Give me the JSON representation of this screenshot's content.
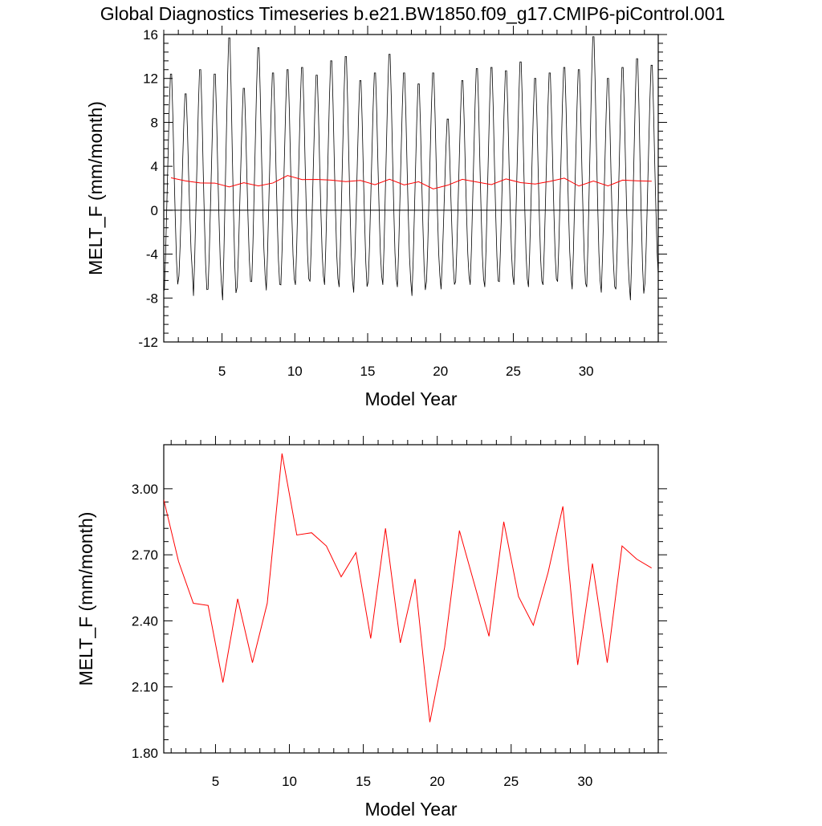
{
  "title": "Global Diagnostics Timeseries b.e21.BW1850.f09_g17.CMIP6-piControl.001",
  "colors": {
    "monthly_line": "#000000",
    "annual_line": "#ff0000",
    "axes": "#000000"
  },
  "chart_data": [
    {
      "type": "line",
      "panel": "top",
      "xlabel": "Model Year",
      "ylabel": "MELT_F (mm/month)",
      "xlim": [
        1,
        34.95
      ],
      "ylim": [
        -12,
        16
      ],
      "x_ticks": [
        5,
        10,
        15,
        20,
        25,
        30
      ],
      "x_tick_labels": [
        "5",
        "10",
        "15",
        "20",
        "25",
        "30"
      ],
      "y_ticks": [
        -12,
        -8,
        -4,
        0,
        4,
        8,
        12,
        16
      ],
      "y_tick_labels": [
        "-12",
        "-8",
        "-4",
        "0",
        "4",
        "8",
        "12",
        "16"
      ],
      "reference_line_y": 0,
      "grid": false,
      "series": [
        {
          "style": "monthly",
          "color": "#000000",
          "x_start": 1.0417,
          "x_step": 0.08333,
          "seasonal_cycle_template": [
            -6.5,
            -3.5,
            0.5,
            4.5,
            8.5,
            11.5,
            11.5,
            8.0,
            3.5,
            -0.5,
            -4.0,
            -6.0
          ],
          "annual_peak_y": [
            12.4,
            10.6,
            12.8,
            12.4,
            15.7,
            11.1,
            14.8,
            12.5,
            12.8,
            13.0,
            12.3,
            13.6,
            14.0,
            11.8,
            12.5,
            14.2,
            12.5,
            11.5,
            12.5,
            8.3,
            11.8,
            12.9,
            13.0,
            12.7,
            13.5,
            12.0,
            12.5,
            13.0,
            12.8,
            15.8,
            12.0,
            13.0,
            13.8,
            13.2
          ],
          "annual_trough_y": [
            -7.3,
            -6.0,
            -7.8,
            -7.2,
            -8.2,
            -7.0,
            -6.5,
            -7.3,
            -6.8,
            -6.8,
            -6.5,
            -6.8,
            -7.0,
            -7.5,
            -6.5,
            -6.8,
            -7.0,
            -7.8,
            -6.5,
            -7.2,
            -6.5,
            -6.8,
            -7.0,
            -6.5,
            -6.8,
            -7.0,
            -6.8,
            -6.5,
            -7.2,
            -7.0,
            -7.5,
            -7.2,
            -8.2,
            -6.6
          ]
        },
        {
          "style": "annual",
          "color": "#ff0000",
          "x": [
            1.5,
            2.5,
            3.5,
            4.5,
            5.5,
            6.5,
            7.5,
            8.5,
            9.5,
            10.5,
            11.5,
            12.5,
            13.5,
            14.5,
            15.5,
            16.5,
            17.5,
            18.5,
            19.5,
            20.5,
            21.5,
            22.5,
            23.5,
            24.5,
            25.5,
            26.5,
            27.5,
            28.5,
            29.5,
            30.5,
            31.5,
            32.5,
            33.5,
            34.5
          ],
          "y": [
            2.95,
            2.67,
            2.48,
            2.47,
            2.12,
            2.5,
            2.21,
            2.48,
            3.16,
            2.79,
            2.8,
            2.74,
            2.6,
            2.71,
            2.32,
            2.82,
            2.3,
            2.59,
            1.94,
            2.28,
            2.81,
            2.57,
            2.33,
            2.85,
            2.51,
            2.38,
            2.62,
            2.92,
            2.2,
            2.66,
            2.21,
            2.74,
            2.68,
            2.64
          ]
        }
      ]
    },
    {
      "type": "line",
      "panel": "bottom",
      "xlabel": "Model Year",
      "ylabel": "MELT_F (mm/month)",
      "xlim": [
        1.5,
        34.95
      ],
      "ylim": [
        1.8,
        3.2
      ],
      "x_ticks": [
        5,
        10,
        15,
        20,
        25,
        30
      ],
      "x_tick_labels": [
        "5",
        "10",
        "15",
        "20",
        "25",
        "30"
      ],
      "y_ticks": [
        1.8,
        2.1,
        2.4,
        2.7,
        3.0
      ],
      "y_tick_labels": [
        "1.80",
        "2.10",
        "2.40",
        "2.70",
        "3.00"
      ],
      "grid": false,
      "series": [
        {
          "style": "annual",
          "color": "#ff0000",
          "x": [
            1.5,
            2.5,
            3.5,
            4.5,
            5.5,
            6.5,
            7.5,
            8.5,
            9.5,
            10.5,
            11.5,
            12.5,
            13.5,
            14.5,
            15.5,
            16.5,
            17.5,
            18.5,
            19.5,
            20.5,
            21.5,
            22.5,
            23.5,
            24.5,
            25.5,
            26.5,
            27.5,
            28.5,
            29.5,
            30.5,
            31.5,
            32.5,
            33.5,
            34.5
          ],
          "y": [
            2.95,
            2.67,
            2.48,
            2.47,
            2.12,
            2.5,
            2.21,
            2.48,
            3.16,
            2.79,
            2.8,
            2.74,
            2.6,
            2.71,
            2.32,
            2.82,
            2.3,
            2.59,
            1.94,
            2.28,
            2.81,
            2.57,
            2.33,
            2.85,
            2.51,
            2.38,
            2.62,
            2.92,
            2.2,
            2.66,
            2.21,
            2.74,
            2.68,
            2.64
          ]
        }
      ]
    }
  ]
}
